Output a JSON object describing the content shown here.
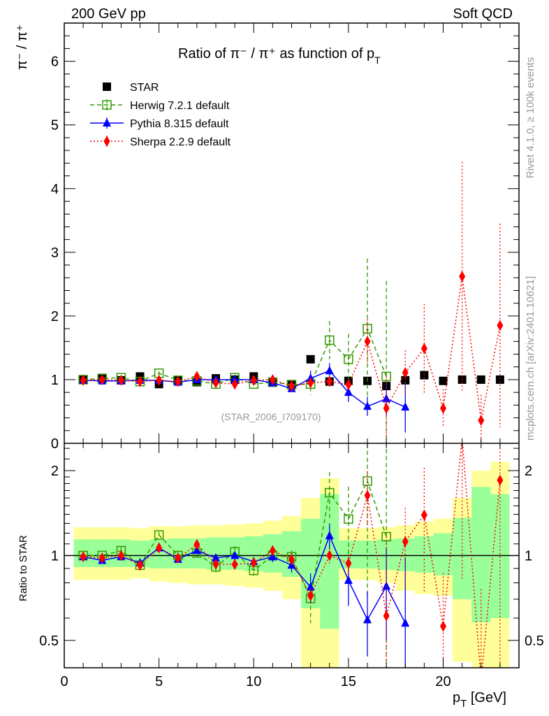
{
  "header": {
    "left": "200 GeV pp",
    "right": "Soft QCD"
  },
  "side": {
    "rivet": "Rivet 4.1.0, ≥ 100k events",
    "mcplots": "mcplots.cern.ch [arXiv:2401.10621]"
  },
  "chart_data": {
    "type": "line",
    "title": "Ratio of π⁻ / π⁺ as function of p_T",
    "title_main": "Ratio of π⁻ / π⁺ as function of p",
    "title_sub": "T",
    "ylabel": "π⁻ / π⁺",
    "ratio_ylabel": "Ratio to STAR",
    "xlabel_main": "p",
    "xlabel_sub": "T",
    "xlabel_unit": " [GeV]",
    "analysis": "(STAR_2006_I709170)",
    "xlim": [
      0,
      24
    ],
    "ylim": [
      0,
      6.6
    ],
    "ratio_ylim": [
      0.4,
      2.5
    ],
    "xticks": [
      "0",
      "5",
      "10",
      "15",
      "20"
    ],
    "yticks": [
      "0",
      "1",
      "2",
      "3",
      "4",
      "5",
      "6"
    ],
    "ratio_yticks": [
      "0.5",
      "1",
      "2"
    ],
    "legend_position": "top-left",
    "series": [
      {
        "name": "STAR",
        "color": "#000000",
        "marker": "square",
        "x": [
          1,
          2,
          3,
          4,
          5,
          6,
          7,
          8,
          9,
          10,
          11,
          12,
          13,
          14,
          15,
          16,
          17,
          18,
          19,
          20,
          21,
          22,
          23
        ],
        "y": [
          1.0,
          1.02,
          0.99,
          1.05,
          0.93,
          0.99,
          0.96,
          1.02,
          1.0,
          1.05,
          0.96,
          0.93,
          1.32,
          0.97,
          0.98,
          0.98,
          0.9,
          0.99,
          1.07,
          0.98,
          1.0,
          1.0,
          1.0
        ],
        "err": [
          0,
          0,
          0,
          0,
          0,
          0,
          0,
          0,
          0,
          0,
          0,
          0,
          0,
          0,
          0,
          0,
          0,
          0,
          0,
          0,
          0,
          0,
          0
        ]
      },
      {
        "name": "Herwig 7.2.1 default",
        "color": "#339900",
        "marker": "open-square",
        "dash": "6,4",
        "x": [
          1,
          2,
          3,
          4,
          5,
          6,
          7,
          8,
          9,
          10,
          11,
          12,
          13,
          14,
          15,
          16,
          17
        ],
        "y": [
          1.0,
          1.02,
          1.03,
          0.97,
          1.1,
          0.99,
          0.98,
          0.93,
          1.03,
          0.93,
          0.96,
          0.92,
          0.93,
          1.62,
          1.32,
          1.8,
          1.05
        ],
        "err": [
          0.02,
          0.02,
          0.03,
          0.03,
          0.03,
          0.03,
          0.03,
          0.04,
          0.05,
          0.04,
          0.05,
          0.05,
          0.17,
          0.3,
          0.4,
          1.1,
          1.5
        ]
      },
      {
        "name": "Pythia 8.315 default",
        "color": "#0000ff",
        "marker": "triangle",
        "dash": "",
        "x": [
          1,
          2,
          3,
          4,
          5,
          6,
          7,
          8,
          9,
          10,
          11,
          12,
          13,
          14,
          15,
          16,
          17,
          18
        ],
        "y": [
          0.99,
          0.98,
          0.98,
          0.99,
          0.99,
          0.96,
          1.0,
          1.0,
          1.0,
          1.0,
          0.95,
          0.86,
          1.02,
          1.14,
          0.8,
          0.58,
          0.7,
          0.57
        ],
        "err": [
          0.01,
          0.01,
          0.01,
          0.01,
          0.01,
          0.02,
          0.02,
          0.02,
          0.03,
          0.03,
          0.04,
          0.05,
          0.12,
          0.12,
          0.15,
          0.15,
          0.25,
          0.4
        ]
      },
      {
        "name": "Sherpa 2.2.9 default",
        "color": "#ff0000",
        "marker": "diamond",
        "dash": "2,3",
        "x": [
          1,
          2,
          3,
          4,
          5,
          6,
          7,
          8,
          9,
          10,
          11,
          12,
          13,
          14,
          15,
          16,
          17,
          18,
          19,
          20,
          21,
          22,
          23
        ],
        "y": [
          0.99,
          1.0,
          0.99,
          0.97,
          0.99,
          0.97,
          1.05,
          0.95,
          0.93,
          0.99,
          1.0,
          0.9,
          0.95,
          0.97,
          0.92,
          1.6,
          0.55,
          1.11,
          1.49,
          0.55,
          2.62,
          0.36,
          1.85
        ],
        "err": [
          0.02,
          0.02,
          0.02,
          0.02,
          0.02,
          0.03,
          0.03,
          0.03,
          0.03,
          0.04,
          0.04,
          0.05,
          0.06,
          0.06,
          0.07,
          0.35,
          0.5,
          0.35,
          0.7,
          0.3,
          1.8,
          0.4,
          1.6
        ]
      }
    ],
    "bands": {
      "edges": [
        0.5,
        1.5,
        2.5,
        3.5,
        4.5,
        5.5,
        6.5,
        7.5,
        8.5,
        9.5,
        10.5,
        11.5,
        12.5,
        13.5,
        14.5,
        15.5,
        16.5,
        17.5,
        18.5,
        19.5,
        20.5,
        21.5,
        22.5,
        23.5
      ],
      "yellow": [
        [
          0.82,
          1.26
        ],
        [
          0.82,
          1.26
        ],
        [
          0.82,
          1.26
        ],
        [
          0.83,
          1.25
        ],
        [
          0.81,
          1.27
        ],
        [
          0.8,
          1.27
        ],
        [
          0.79,
          1.28
        ],
        [
          0.79,
          1.28
        ],
        [
          0.78,
          1.29
        ],
        [
          0.77,
          1.3
        ],
        [
          0.75,
          1.33
        ],
        [
          0.7,
          1.38
        ],
        [
          0.38,
          1.6
        ],
        [
          0.35,
          1.88
        ],
        [
          0.82,
          1.25
        ],
        [
          0.82,
          1.25
        ],
        [
          0.8,
          1.26
        ],
        [
          0.75,
          1.28
        ],
        [
          0.73,
          1.32
        ],
        [
          0.72,
          1.35
        ],
        [
          0.42,
          1.6
        ],
        [
          0.35,
          2.0
        ],
        [
          0.35,
          2.15
        ]
      ],
      "green": [
        [
          0.91,
          1.14
        ],
        [
          0.91,
          1.14
        ],
        [
          0.91,
          1.14
        ],
        [
          0.91,
          1.13
        ],
        [
          0.9,
          1.14
        ],
        [
          0.9,
          1.15
        ],
        [
          0.9,
          1.15
        ],
        [
          0.89,
          1.16
        ],
        [
          0.89,
          1.16
        ],
        [
          0.88,
          1.17
        ],
        [
          0.87,
          1.19
        ],
        [
          0.84,
          1.22
        ],
        [
          0.65,
          1.35
        ],
        [
          0.55,
          1.65
        ],
        [
          0.9,
          1.13
        ],
        [
          0.9,
          1.13
        ],
        [
          0.89,
          1.14
        ],
        [
          0.88,
          1.15
        ],
        [
          0.87,
          1.17
        ],
        [
          0.85,
          1.2
        ],
        [
          0.7,
          1.36
        ],
        [
          0.58,
          1.75
        ],
        [
          0.6,
          1.65
        ]
      ]
    }
  }
}
